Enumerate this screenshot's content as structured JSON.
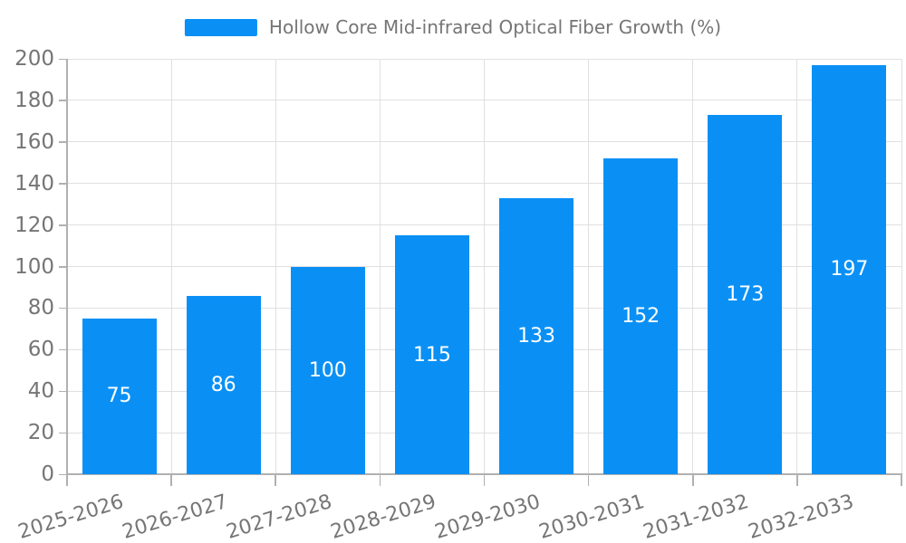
{
  "legend": {
    "label": "Hollow Core Mid-infrared Optical Fiber Growth (%)"
  },
  "chart_data": {
    "type": "bar",
    "title": "Hollow Core Mid-infrared Optical Fiber Growth (%)",
    "categories": [
      "2025-2026",
      "2026-2027",
      "2027-2028",
      "2028-2029",
      "2029-2030",
      "2030-2031",
      "2031-2032",
      "2032-2033"
    ],
    "values": [
      75,
      86,
      100,
      115,
      133,
      152,
      173,
      197
    ],
    "bar_labels": [
      "75",
      "86",
      "100",
      "115",
      "133",
      "152",
      "173",
      "197"
    ],
    "xlabel": "",
    "ylabel": "",
    "ylim": [
      0,
      200
    ],
    "ytick_step": 20,
    "ytick_labels": [
      "0",
      "20",
      "40",
      "60",
      "80",
      "100",
      "120",
      "140",
      "160",
      "180",
      "200"
    ],
    "grid": "both",
    "legend_position": "top-center",
    "colors": {
      "bar": "#0A90F5",
      "grid": "#E0E0E0",
      "axis": "#B0B0B0",
      "tick_label": "#757575",
      "bar_label": "#FFFFFF",
      "background": "#FFFFFF"
    }
  }
}
